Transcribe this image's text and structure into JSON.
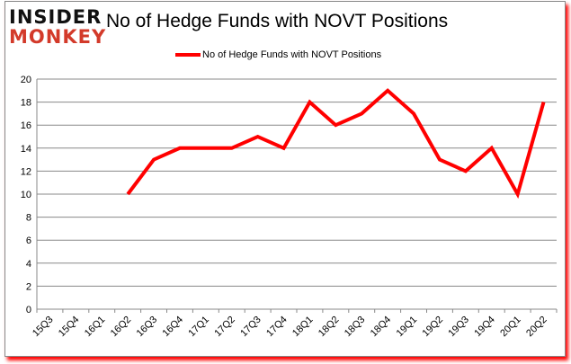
{
  "logo": {
    "line1": "INSIDER",
    "line2": "MONKEY"
  },
  "chart_data": {
    "type": "line",
    "title": "No of Hedge Funds with NOVT Positions",
    "legend": {
      "entries": [
        "No of Hedge Funds with NOVT Positions"
      ],
      "placement": "top"
    },
    "categories": [
      "15Q3",
      "15Q4",
      "16Q1",
      "16Q2",
      "16Q3",
      "16Q4",
      "17Q1",
      "17Q2",
      "17Q3",
      "17Q4",
      "18Q1",
      "18Q2",
      "18Q3",
      "18Q4",
      "19Q1",
      "19Q2",
      "19Q3",
      "19Q4",
      "20Q1",
      "20Q2"
    ],
    "series": [
      {
        "name": "No of Hedge Funds with NOVT Positions",
        "color": "#ff0000",
        "values": [
          null,
          null,
          null,
          10,
          13,
          14,
          14,
          14,
          15,
          14,
          18,
          16,
          17,
          19,
          17,
          13,
          12,
          14,
          10,
          18
        ]
      }
    ],
    "ylim": [
      0,
      20
    ],
    "yticks": [
      0,
      2,
      4,
      6,
      8,
      10,
      12,
      14,
      16,
      18,
      20
    ],
    "grid": true,
    "xlabel": "",
    "ylabel": ""
  }
}
